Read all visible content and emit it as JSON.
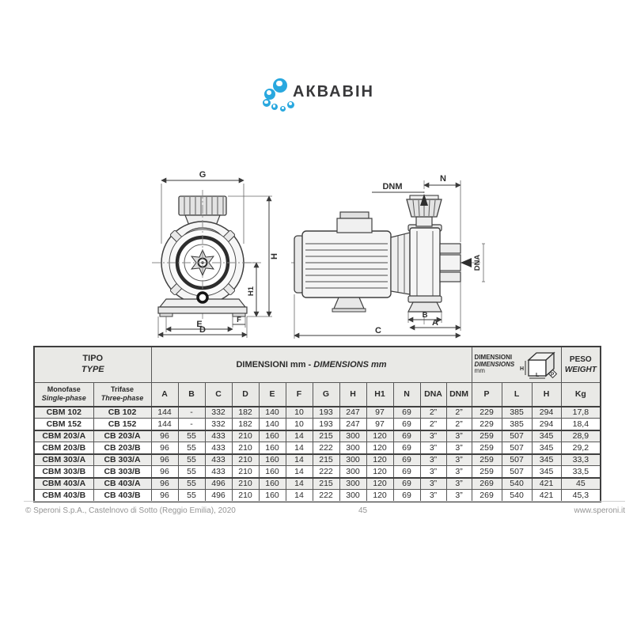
{
  "logo": {
    "text": "АКВАВІН",
    "bubble_color": "#29a8df"
  },
  "drawings": {
    "front": {
      "g": "G",
      "h": "H",
      "h1": "H1",
      "f": "F",
      "e": "E",
      "d": "D"
    },
    "side": {
      "dnm": "DNM",
      "n": "N",
      "dna": "DNA",
      "b": "B",
      "a": "A",
      "c": "C"
    }
  },
  "table": {
    "tipo": "TIPO",
    "type": "TYPE",
    "dim_header_main": "DIMENSIONI mm - ",
    "dim_header_italic": "DIMENSIONS mm",
    "monofase": "Monofase",
    "single_phase": "Single-phase",
    "trifase": "Trifase",
    "three_phase": "Three-phase",
    "dim_box": {
      "line1": "DIMENSIONI",
      "line2": "DIMENSIONS",
      "line3": "mm",
      "p": "P",
      "l": "L",
      "h": "H"
    },
    "peso": "PESO",
    "weight": "WEIGHT",
    "columns": [
      "A",
      "B",
      "C",
      "D",
      "E",
      "F",
      "G",
      "H",
      "H1",
      "N",
      "DNA",
      "DNM",
      "P",
      "L",
      "H",
      "Kg"
    ],
    "rows": [
      {
        "monofase": "CBM 102",
        "trifase": "CB 102",
        "values": [
          "144",
          "-",
          "332",
          "182",
          "140",
          "10",
          "193",
          "247",
          "97",
          "69",
          "2”",
          "2”",
          "229",
          "385",
          "294",
          "17,8"
        ]
      },
      {
        "monofase": "CBM 152",
        "trifase": "CB 152",
        "values": [
          "144",
          "-",
          "332",
          "182",
          "140",
          "10",
          "193",
          "247",
          "97",
          "69",
          "2”",
          "2”",
          "229",
          "385",
          "294",
          "18,4"
        ]
      },
      {
        "monofase": "CBM 203/A",
        "trifase": "CB 203/A",
        "values": [
          "96",
          "55",
          "433",
          "210",
          "160",
          "14",
          "215",
          "300",
          "120",
          "69",
          "3”",
          "3”",
          "259",
          "507",
          "345",
          "28,9"
        ]
      },
      {
        "monofase": "CBM 203/B",
        "trifase": "CB 203/B",
        "values": [
          "96",
          "55",
          "433",
          "210",
          "160",
          "14",
          "222",
          "300",
          "120",
          "69",
          "3”",
          "3”",
          "259",
          "507",
          "345",
          "29,2"
        ]
      },
      {
        "monofase": "CBM 303/A",
        "trifase": "CB 303/A",
        "values": [
          "96",
          "55",
          "433",
          "210",
          "160",
          "14",
          "215",
          "300",
          "120",
          "69",
          "3”",
          "3”",
          "259",
          "507",
          "345",
          "33,3"
        ]
      },
      {
        "monofase": "CBM 303/B",
        "trifase": "CB 303/B",
        "values": [
          "96",
          "55",
          "433",
          "210",
          "160",
          "14",
          "222",
          "300",
          "120",
          "69",
          "3”",
          "3”",
          "259",
          "507",
          "345",
          "33,5"
        ]
      },
      {
        "monofase": "CBM 403/A",
        "trifase": "CB 403/A",
        "values": [
          "96",
          "55",
          "496",
          "210",
          "160",
          "14",
          "215",
          "300",
          "120",
          "69",
          "3”",
          "3”",
          "269",
          "540",
          "421",
          "45"
        ]
      },
      {
        "monofase": "CBM 403/B",
        "trifase": "CB 403/B",
        "values": [
          "96",
          "55",
          "496",
          "210",
          "160",
          "14",
          "222",
          "300",
          "120",
          "69",
          "3”",
          "3”",
          "269",
          "540",
          "421",
          "45,3"
        ]
      }
    ]
  },
  "footer": {
    "copyright": "© Speroni S.p.A., Castelnovo di Sotto (Reggio Emilia), 2020",
    "page_number": "45",
    "website": "www.speroni.it"
  }
}
